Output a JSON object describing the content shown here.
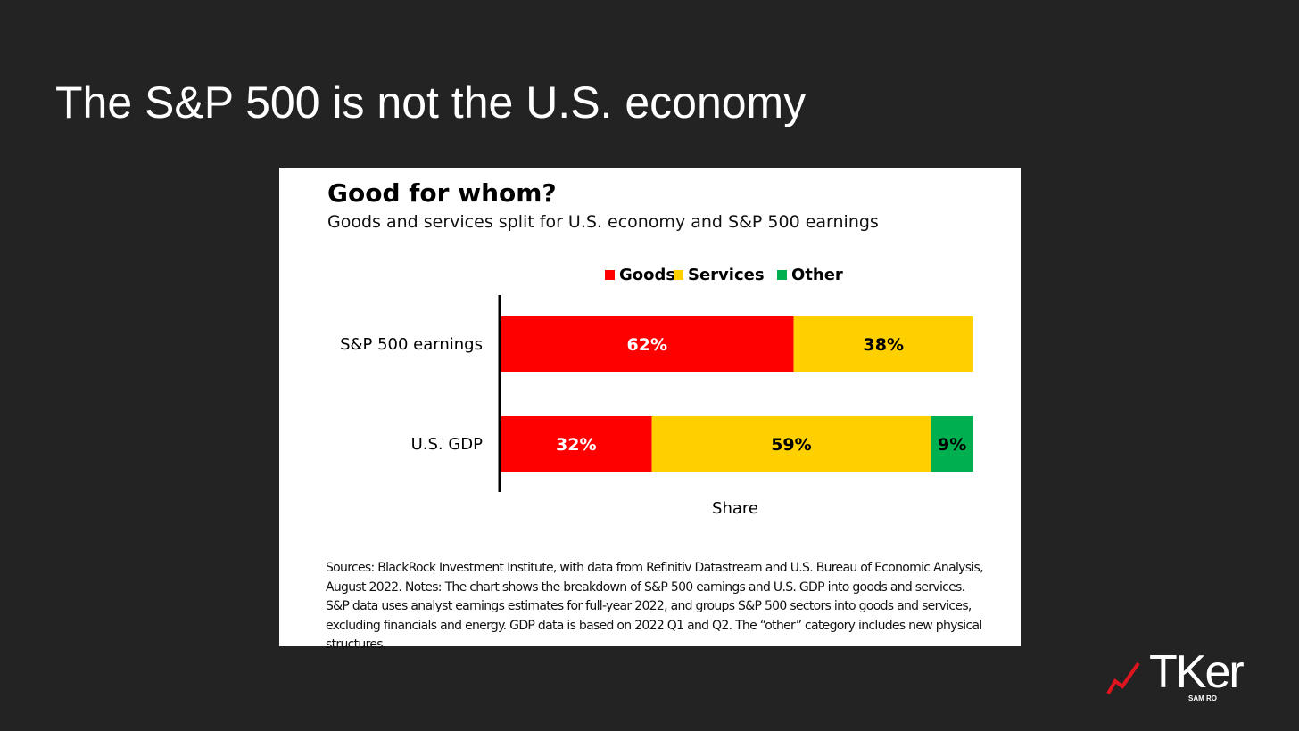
{
  "slide": {
    "title": "The S&P 500 is not the U.S. economy"
  },
  "chart_data": {
    "type": "bar",
    "orientation": "horizontal",
    "stacked": true,
    "title": "Good for whom?",
    "subtitle": "Goods and services split for U.S. economy and S&P 500 earnings",
    "xlabel": "Share",
    "ylabel": "",
    "categories": [
      "S&P 500 earnings",
      "U.S. GDP"
    ],
    "series": [
      {
        "name": "Goods",
        "values": [
          62,
          32
        ],
        "labels": [
          "62%",
          "32%"
        ],
        "color": "#ff0000",
        "label_color": "#ffffff"
      },
      {
        "name": "Services",
        "values": [
          38,
          59
        ],
        "labels": [
          "38%",
          "59%"
        ],
        "color": "#ffd000",
        "label_color": "#000000"
      },
      {
        "name": "Other",
        "values": [
          0,
          9
        ],
        "labels": [
          "",
          "9%"
        ],
        "color": "#00b050",
        "label_color": "#000000"
      }
    ],
    "xlim": [
      0,
      100
    ],
    "legend_position": "top",
    "grid": false
  },
  "notes": "Sources: BlackRock Investment Institute, with data from Refinitiv Datastream and U.S. Bureau of Economic Analysis, August 2022. Notes: The chart shows the breakdown of S&P 500 earnings and U.S. GDP into goods and services. S&P data uses analyst earnings estimates for full-year 2022, and groups S&P 500 sectors into goods and services, excluding financials and energy. GDP data is based on 2022 Q1 and Q2. The “other” category includes new physical structures.",
  "brand": {
    "name": "TKer",
    "sub": "SAM RO",
    "accent": "#e0141e"
  }
}
